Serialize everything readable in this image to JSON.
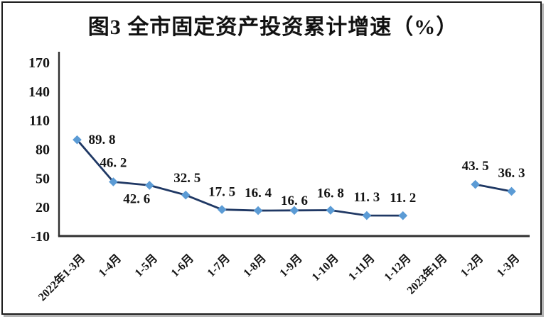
{
  "chart": {
    "title": "图3 全市固定资产投资累计增速（%）"
  },
  "chart_data": {
    "type": "line",
    "title": "图3 全市固定资产投资累计增速（%）",
    "categories": [
      "2022年1-3月",
      "1-4月",
      "1-5月",
      "1-6月",
      "1-7月",
      "1-8月",
      "1-9月",
      "1-10月",
      "1-11月",
      "1-12月",
      "2023年1月",
      "1-2月",
      "1-3月"
    ],
    "values": [
      89.8,
      46.2,
      42.6,
      32.5,
      17.5,
      16.4,
      16.6,
      16.8,
      11.3,
      11.2,
      null,
      43.5,
      36.3
    ],
    "point_labels": [
      "89. 8",
      "46. 2",
      "42. 6",
      "32. 5",
      "17. 5",
      "16. 4",
      "16. 6",
      "16. 8",
      "11. 3",
      "11. 2",
      null,
      "43. 5",
      "36. 3"
    ],
    "yticks": [
      170,
      140,
      110,
      80,
      50,
      20,
      -10
    ],
    "ylim": [
      -10,
      170
    ],
    "xlabel": "",
    "ylabel": "",
    "grid": false,
    "legend": "none",
    "marker": "diamond",
    "line_color": "#1f3864",
    "marker_color": "#5b9bd5",
    "axis_color": "#303030",
    "text_color": "#141414",
    "label_offsets": [
      [
        35,
        6
      ],
      [
        0,
        -21
      ],
      [
        -18,
        25
      ],
      [
        2,
        -18
      ],
      [
        0,
        -19
      ],
      [
        0,
        -19
      ],
      [
        0,
        -8
      ],
      [
        0,
        -18
      ],
      [
        0,
        -20
      ],
      [
        0,
        -19
      ],
      null,
      [
        0,
        -20
      ],
      [
        0,
        -20
      ]
    ]
  }
}
